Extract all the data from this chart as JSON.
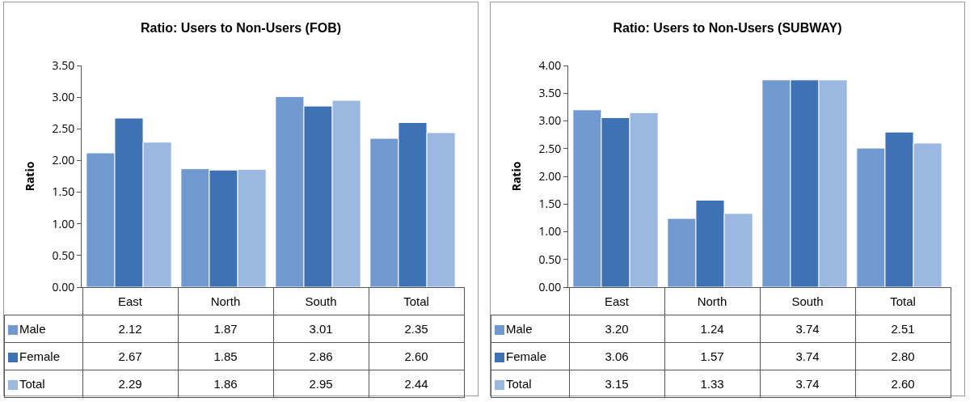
{
  "chart_data": [
    {
      "type": "bar",
      "title": "Ratio: Users to Non-Users (FOB)",
      "ylabel": "Ratio",
      "categories": [
        "East",
        "North",
        "South",
        "Total"
      ],
      "series": [
        {
          "name": "Male",
          "color": "#7099cf",
          "values": [
            2.12,
            1.87,
            3.01,
            2.35
          ]
        },
        {
          "name": "Female",
          "color": "#3f72b5",
          "values": [
            2.67,
            1.85,
            2.86,
            2.6
          ]
        },
        {
          "name": "Total",
          "color": "#9ab8e0",
          "values": [
            2.29,
            1.86,
            2.95,
            2.44
          ]
        }
      ],
      "ylim": [
        0,
        3.5
      ],
      "yticks": [
        {
          "value": 0,
          "label": "0.00"
        },
        {
          "value": 0.5,
          "label": "0.50"
        },
        {
          "value": 1,
          "label": "1.00"
        },
        {
          "value": 1.5,
          "label": "1.50"
        },
        {
          "value": 2,
          "label": "2.00"
        },
        {
          "value": 2.5,
          "label": "2.50"
        },
        {
          "value": 3,
          "label": "3.00"
        },
        {
          "value": 3.5,
          "label": "3.50"
        }
      ],
      "value_labels": [
        [
          "2.12",
          "1.87",
          "3.01",
          "2.35"
        ],
        [
          "2.67",
          "1.85",
          "2.86",
          "2.60"
        ],
        [
          "2.29",
          "1.86",
          "2.95",
          "2.44"
        ]
      ],
      "legend": "bottom",
      "grid": false
    },
    {
      "type": "bar",
      "title": "Ratio: Users to Non-Users (SUBWAY)",
      "ylabel": "Ratio",
      "categories": [
        "East",
        "North",
        "South",
        "Total"
      ],
      "series": [
        {
          "name": "Male",
          "color": "#7099cf",
          "values": [
            3.2,
            1.24,
            3.74,
            2.51
          ]
        },
        {
          "name": "Female",
          "color": "#3f72b5",
          "values": [
            3.06,
            1.57,
            3.74,
            2.8
          ]
        },
        {
          "name": "Total",
          "color": "#9ab8e0",
          "values": [
            3.15,
            1.33,
            3.74,
            2.6
          ]
        }
      ],
      "ylim": [
        0,
        4
      ],
      "yticks": [
        {
          "value": 0,
          "label": "0.00"
        },
        {
          "value": 0.5,
          "label": "0.50"
        },
        {
          "value": 1,
          "label": "1.00"
        },
        {
          "value": 1.5,
          "label": "1.50"
        },
        {
          "value": 2,
          "label": "2.00"
        },
        {
          "value": 2.5,
          "label": "2.50"
        },
        {
          "value": 3,
          "label": "3.00"
        },
        {
          "value": 3.5,
          "label": "3.50"
        },
        {
          "value": 4,
          "label": "4.00"
        }
      ],
      "value_labels": [
        [
          "3.20",
          "1.24",
          "3.74",
          "2.51"
        ],
        [
          "3.06",
          "1.57",
          "3.74",
          "2.80"
        ],
        [
          "3.15",
          "1.33",
          "3.74",
          "2.60"
        ]
      ],
      "legend": "bottom",
      "grid": false
    }
  ]
}
